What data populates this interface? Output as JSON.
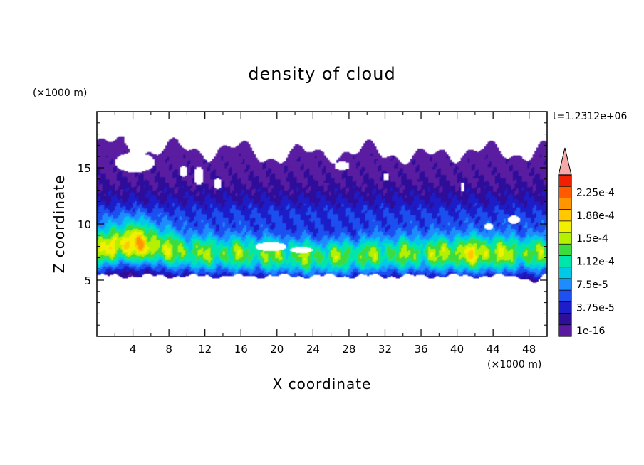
{
  "chart_data": {
    "type": "heatmap",
    "title": "density of cloud",
    "xlabel": "X coordinate",
    "ylabel": "Z coordinate",
    "x_unit": "(×1000 m)",
    "y_unit": "(×1000 m)",
    "time_label": "t=1.2312e+06",
    "xlim": [
      0,
      50
    ],
    "ylim": [
      0,
      20
    ],
    "x_ticks": [
      4,
      8,
      12,
      16,
      20,
      24,
      28,
      32,
      36,
      40,
      44,
      48
    ],
    "x_tick_labels": [
      "4",
      "8",
      "12",
      "16",
      "20",
      "24",
      "28",
      "32",
      "36",
      "40",
      "44",
      "48"
    ],
    "y_ticks": [
      5,
      10,
      15
    ],
    "y_tick_labels": [
      "5",
      "10",
      "15"
    ],
    "colorbar": {
      "levels": [
        1e-16,
        1.875e-05,
        3.75e-05,
        5.625e-05,
        7.5e-05,
        9.375e-05,
        0.0001125,
        0.00013125,
        0.00015,
        0.00016875,
        0.0001875,
        0.00020625,
        0.000225,
        0.00024375
      ],
      "labels": [
        "1e-16",
        "3.75e-5",
        "7.5e-5",
        "1.12e-4",
        "1.5e-4",
        "1.88e-4",
        "2.25e-4"
      ],
      "label_levels": [
        0,
        2,
        4,
        6,
        8,
        10,
        12
      ],
      "colors": [
        "#5a1aa0",
        "#2d0f9a",
        "#1e1ec8",
        "#1e50f0",
        "#1e8cff",
        "#00c8e6",
        "#00e6aa",
        "#3cdc3c",
        "#b4f000",
        "#f0f000",
        "#ffc800",
        "#ff9600",
        "#ff5a00",
        "#f02000"
      ],
      "overflow_color": "#f4a8a8"
    }
  }
}
